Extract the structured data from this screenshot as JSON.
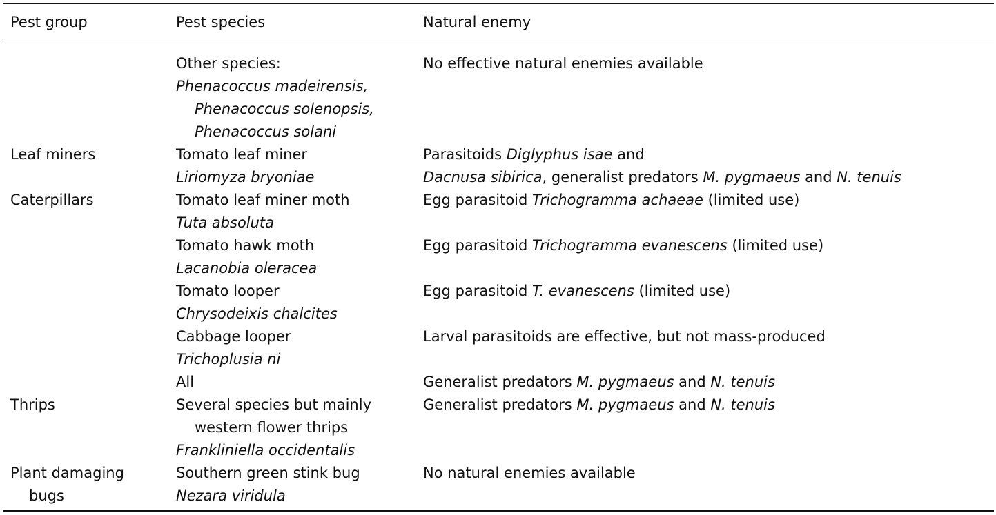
{
  "header": {
    "pest_group": "Pest group",
    "pest_species": "Pest species",
    "natural_enemy": "Natural enemy"
  },
  "rows": [
    {
      "group": [],
      "species": [
        {
          "text": "Other species:",
          "italic": false,
          "indent": false
        },
        {
          "text": "Phenacoccus madeirensis,",
          "italic": true,
          "indent": false
        },
        {
          "text": "Phenacoccus solenopsis,",
          "italic": true,
          "indent": true
        },
        {
          "text": "Phenacoccus solani",
          "italic": true,
          "indent": true
        }
      ],
      "enemy": [
        [
          {
            "t": "No effective natural enemies available",
            "i": false
          }
        ]
      ]
    },
    {
      "group": [
        {
          "text": "Leaf miners",
          "indent": false
        }
      ],
      "species": [
        {
          "text": "Tomato leaf miner",
          "italic": false,
          "indent": false
        },
        {
          "text": "Liriomyza bryoniae",
          "italic": true,
          "indent": false
        }
      ],
      "enemy": [
        [
          {
            "t": "Parasitoids ",
            "i": false
          },
          {
            "t": "Diglyphus isae",
            "i": true
          },
          {
            "t": " and",
            "i": false
          }
        ],
        [
          {
            "t": "Dacnusa sibirica",
            "i": true
          },
          {
            "t": ", generalist predators ",
            "i": false
          },
          {
            "t": "M. pygmaeus",
            "i": true
          },
          {
            "t": " and ",
            "i": false
          },
          {
            "t": "N. tenuis",
            "i": true
          }
        ]
      ]
    },
    {
      "group": [
        {
          "text": "Caterpillars",
          "indent": false
        }
      ],
      "species": [
        {
          "text": "Tomato leaf miner moth",
          "italic": false,
          "indent": false
        },
        {
          "text": "Tuta absoluta",
          "italic": true,
          "indent": false
        }
      ],
      "enemy": [
        [
          {
            "t": "Egg parasitoid ",
            "i": false
          },
          {
            "t": "Trichogramma achaeae",
            "i": true
          },
          {
            "t": " (limited use)",
            "i": false
          }
        ]
      ]
    },
    {
      "group": [],
      "species": [
        {
          "text": "Tomato hawk moth",
          "italic": false,
          "indent": false
        },
        {
          "text": "Lacanobia oleracea",
          "italic": true,
          "indent": false
        }
      ],
      "enemy": [
        [
          {
            "t": "Egg parasitoid ",
            "i": false
          },
          {
            "t": "Trichogramma evanescens",
            "i": true
          },
          {
            "t": " (limited use)",
            "i": false
          }
        ]
      ]
    },
    {
      "group": [],
      "species": [
        {
          "text": "Tomato looper",
          "italic": false,
          "indent": false
        },
        {
          "text": "Chrysodeixis chalcites",
          "italic": true,
          "indent": false
        }
      ],
      "enemy": [
        [
          {
            "t": "Egg parasitoid ",
            "i": false
          },
          {
            "t": "T. evanescens",
            "i": true
          },
          {
            "t": " (limited use)",
            "i": false
          }
        ]
      ]
    },
    {
      "group": [],
      "species": [
        {
          "text": "Cabbage looper",
          "italic": false,
          "indent": false
        },
        {
          "text": "Trichoplusia ni",
          "italic": true,
          "indent": false
        }
      ],
      "enemy": [
        [
          {
            "t": "Larval parasitoids are effective, but not mass-produced",
            "i": false
          }
        ]
      ]
    },
    {
      "group": [],
      "species": [
        {
          "text": "All",
          "italic": false,
          "indent": false
        }
      ],
      "enemy": [
        [
          {
            "t": "Generalist predators ",
            "i": false
          },
          {
            "t": "M. pygmaeus",
            "i": true
          },
          {
            "t": " and ",
            "i": false
          },
          {
            "t": "N. tenuis",
            "i": true
          }
        ]
      ]
    },
    {
      "group": [
        {
          "text": "Thrips",
          "indent": false
        }
      ],
      "species": [
        {
          "text": "Several species but mainly",
          "italic": false,
          "indent": false
        },
        {
          "text": "western flower thrips",
          "italic": false,
          "indent": true
        },
        {
          "text": "Frankliniella occidentalis",
          "italic": true,
          "indent": false
        }
      ],
      "enemy": [
        [
          {
            "t": "Generalist predators ",
            "i": false
          },
          {
            "t": "M. pygmaeus",
            "i": true
          },
          {
            "t": " and ",
            "i": false
          },
          {
            "t": "N. tenuis",
            "i": true
          }
        ]
      ]
    },
    {
      "group": [
        {
          "text": "Plant damaging",
          "indent": false
        },
        {
          "text": "bugs",
          "indent": true
        }
      ],
      "species": [
        {
          "text": "Southern green stink bug",
          "italic": false,
          "indent": false
        },
        {
          "text": "Nezara viridula",
          "italic": true,
          "indent": false
        }
      ],
      "enemy": [
        [
          {
            "t": "No natural enemies available",
            "i": false
          }
        ]
      ]
    }
  ]
}
